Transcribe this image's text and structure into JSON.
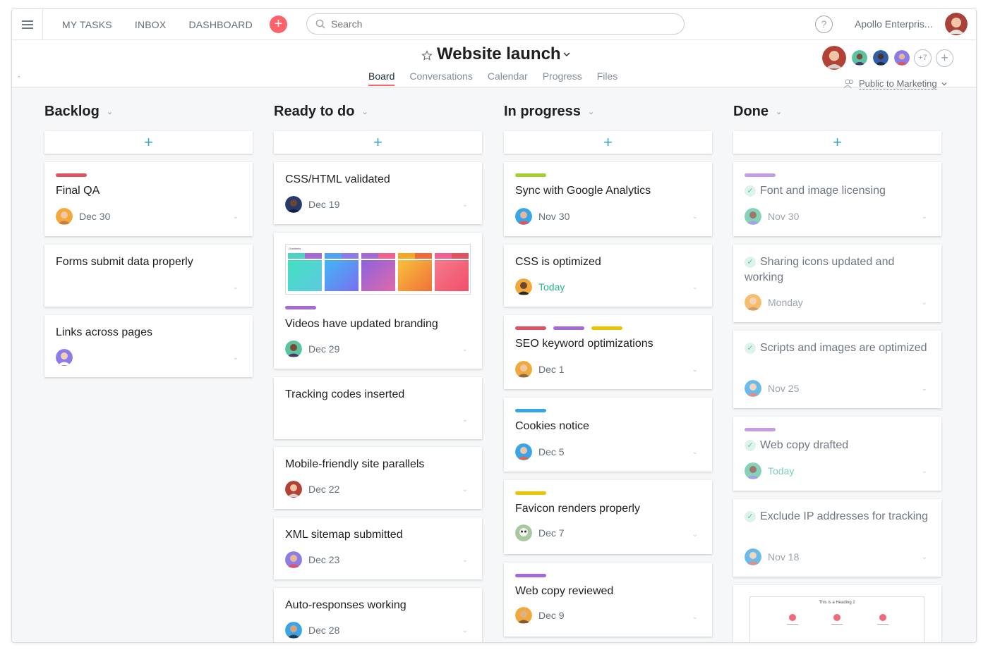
{
  "topbar": {
    "nav": [
      "MY TASKS",
      "INBOX",
      "DASHBOARD"
    ],
    "search_placeholder": "Search",
    "help_label": "?",
    "org_name": "Apollo Enterpris..."
  },
  "project": {
    "title": "Website launch",
    "tabs": [
      "Board",
      "Conversations",
      "Calendar",
      "Progress",
      "Files"
    ],
    "active_tab": "Board",
    "members_more": "+7",
    "privacy": "Public to Marketing"
  },
  "columns": [
    {
      "title": "Backlog",
      "cards": [
        {
          "title": "Final QA",
          "due": "Dec 30",
          "tags": [
            "#e0525f"
          ]
        },
        {
          "title": "Forms submit data properly",
          "due": "",
          "tags": []
        },
        {
          "title": "Links across pages",
          "due": "",
          "tags": []
        }
      ]
    },
    {
      "title": "Ready to do",
      "cards": [
        {
          "title": "CSS/HTML validated",
          "due": "Dec 19",
          "tags": []
        },
        {
          "title": "Videos have updated branding",
          "due": "Dec 29",
          "tags": [
            "#a36ad8"
          ],
          "attachment_label": "Gradients"
        },
        {
          "title": "Tracking codes inserted",
          "due": "",
          "tags": []
        },
        {
          "title": "Mobile-friendly site parallels",
          "due": "Dec 22",
          "tags": []
        },
        {
          "title": "XML sitemap submitted",
          "due": "Dec 23",
          "tags": []
        },
        {
          "title": "Auto-responses working",
          "due": "Dec 28",
          "tags": []
        }
      ]
    },
    {
      "title": "In progress",
      "cards": [
        {
          "title": "Sync with Google Analytics",
          "due": "Nov 30",
          "tags": [
            "#a4cf30"
          ]
        },
        {
          "title": "CSS is optimized",
          "due": "Today",
          "tags": []
        },
        {
          "title": "SEO keyword optimizations",
          "due": "Dec 1",
          "tags": [
            "#e0525f",
            "#a36ad8",
            "#eec300"
          ]
        },
        {
          "title": "Cookies notice",
          "due": "Dec 5",
          "tags": [
            "#37a5e8"
          ]
        },
        {
          "title": "Favicon renders properly",
          "due": "Dec 7",
          "tags": [
            "#eec300"
          ]
        },
        {
          "title": "Web copy reviewed",
          "due": "Dec 9",
          "tags": [
            "#a36ad8"
          ]
        }
      ]
    },
    {
      "title": "Done",
      "cards": [
        {
          "title": "Font and image licensing",
          "due": "Nov 30",
          "tags": [
            "#c69ce6"
          ]
        },
        {
          "title": "Sharing icons updated and working",
          "due": "Monday",
          "tags": []
        },
        {
          "title": "Scripts and images are optimized",
          "due": "Nov 25",
          "tags": []
        },
        {
          "title": "Web copy drafted",
          "due": "Today",
          "tags": [
            "#c69ce6"
          ]
        },
        {
          "title": "Exclude IP addresses for tracking",
          "due": "Nov 18",
          "tags": []
        },
        {
          "title": "",
          "due": "",
          "tags": [],
          "attachment_label": "This is a Heading 2"
        }
      ]
    }
  ],
  "colors": {
    "accent_red": "#fc636b",
    "add_plus": "#3ea3c3",
    "today_green": "#25b586"
  }
}
